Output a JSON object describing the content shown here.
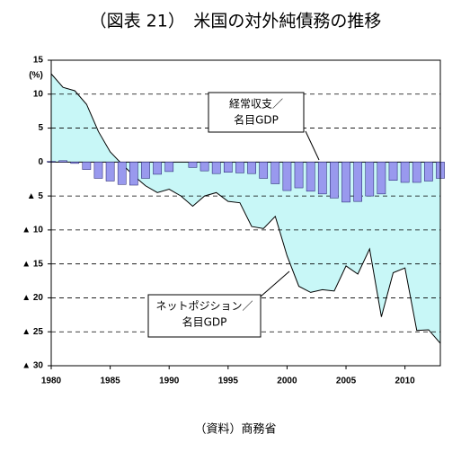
{
  "chart_data": {
    "type": "area_bar",
    "title": "（図表 21）　米国の対外純債務の推移",
    "source": "（資料）商務省",
    "y_unit": "(%)",
    "x": [
      1980,
      1981,
      1982,
      1983,
      1984,
      1985,
      1986,
      1987,
      1988,
      1989,
      1990,
      1991,
      1992,
      1993,
      1994,
      1995,
      1996,
      1997,
      1998,
      1999,
      2000,
      2001,
      2002,
      2003,
      2004,
      2005,
      2006,
      2007,
      2008,
      2009,
      2010,
      2011,
      2012,
      2013
    ],
    "series": [
      {
        "kind": "area",
        "color": "#c8f7f7",
        "line_color": "#000000",
        "values": [
          13,
          11,
          10.5,
          8.5,
          4.5,
          1.5,
          -0.3,
          -2,
          -3.5,
          -4.5,
          -4,
          -5,
          -6.5,
          -5,
          -4.5,
          -5.8,
          -6,
          -9.5,
          -9.8,
          -8,
          -13.8,
          -18.3,
          -19.2,
          -18.8,
          -19,
          -15.3,
          -16.5,
          -12.8,
          -22.8,
          -16.3,
          -15.6,
          -24.8,
          -24.7,
          -26.7
        ]
      },
      {
        "kind": "bar",
        "color": "#9999ee",
        "line_color": "#1a1a66",
        "values": [
          0.1,
          0.2,
          -0.2,
          -1.1,
          -2.4,
          -2.8,
          -3.3,
          -3.4,
          -2.4,
          -1.8,
          -1.4,
          0,
          -0.8,
          -1.3,
          -1.7,
          -1.5,
          -1.6,
          -1.7,
          -2.4,
          -3.2,
          -4.2,
          -3.8,
          -4.3,
          -4.7,
          -5.3,
          -5.9,
          -5.8,
          -5,
          -4.7,
          -2.7,
          -3,
          -3,
          -2.8,
          -2.4
        ]
      }
    ],
    "annotations": [
      {
        "lines": [
          "経常収支／",
          "名目GDP"
        ]
      },
      {
        "lines": [
          "ネットポジション／",
          "名目GDP"
        ]
      }
    ],
    "xlim": [
      1980,
      2013
    ],
    "xticks": [
      1980,
      1985,
      1990,
      1995,
      2000,
      2005,
      2010
    ],
    "ylim": [
      -30,
      15
    ],
    "yticks": [
      15,
      10,
      5,
      0,
      {
        "value": -5,
        "label": "▲ 5"
      },
      {
        "value": -10,
        "label": "▲ 10"
      },
      {
        "value": -15,
        "label": "▲ 15"
      },
      {
        "value": -20,
        "label": "▲ 20"
      },
      {
        "value": -25,
        "label": "▲ 25"
      },
      {
        "value": -30,
        "label": "▲ 30"
      }
    ],
    "grid": true
  }
}
